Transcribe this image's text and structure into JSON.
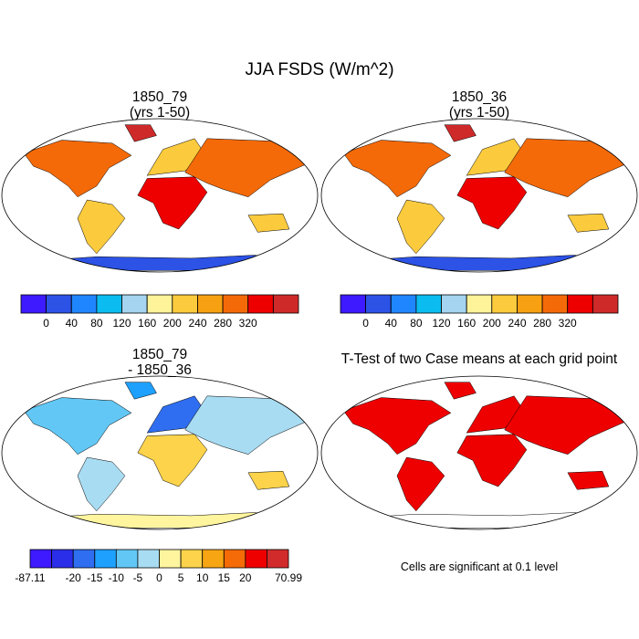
{
  "title": "JJA FSDS (W/m^2)",
  "panels": [
    {
      "id": "p1",
      "title_line1": "1850_79",
      "title_line2": "(yrs 1-50)"
    },
    {
      "id": "p2",
      "title_line1": "1850_36",
      "title_line2": "(yrs 1-50)"
    },
    {
      "id": "p3",
      "title_line1": "1850_79",
      "title_line2": "- 1850_36"
    },
    {
      "id": "p4",
      "title_line1": "T-Test of two Case means at each grid point",
      "title_line2": ""
    }
  ],
  "significance_note": "Cells are significant at 0.1 level",
  "chart_data": [
    {
      "type": "heatmap",
      "title": "1850_79 (yrs 1-50)",
      "colorbar": {
        "colors": [
          "#3d1aff",
          "#2c52e6",
          "#1f86ff",
          "#0bbcf0",
          "#a5d4f0",
          "#fff39a",
          "#fccb3d",
          "#f7a112",
          "#f56a08",
          "#ef0000",
          "#cf2a2a"
        ],
        "labels": [
          "0",
          "40",
          "80",
          "120",
          "160",
          "200",
          "240",
          "280",
          "320"
        ]
      }
    },
    {
      "type": "heatmap",
      "title": "1850_36 (yrs 1-50)",
      "colorbar": {
        "colors": [
          "#3d1aff",
          "#2c52e6",
          "#1f86ff",
          "#0bbcf0",
          "#a5d4f0",
          "#fff39a",
          "#fccb3d",
          "#f7a112",
          "#f56a08",
          "#ef0000",
          "#cf2a2a"
        ],
        "labels": [
          "0",
          "40",
          "80",
          "120",
          "160",
          "200",
          "240",
          "280",
          "320"
        ]
      }
    },
    {
      "type": "heatmap",
      "title": "1850_79 - 1850_36",
      "colorbar": {
        "colors": [
          "#3d1aff",
          "#2a2ee8",
          "#2f6ef0",
          "#1ea0ff",
          "#62c7f5",
          "#a8dcf2",
          "#fff59e",
          "#fcd34a",
          "#f7a513",
          "#f56b07",
          "#ef0000",
          "#d22b2b"
        ],
        "labels": [
          "-87.11",
          "-20",
          "-15",
          "-10",
          "-5",
          "0",
          "5",
          "10",
          "15",
          "20",
          "70.99"
        ]
      }
    },
    {
      "type": "heatmap",
      "title": "T-Test of two Case means at each grid point",
      "significant_color": "#ef0000"
    }
  ]
}
